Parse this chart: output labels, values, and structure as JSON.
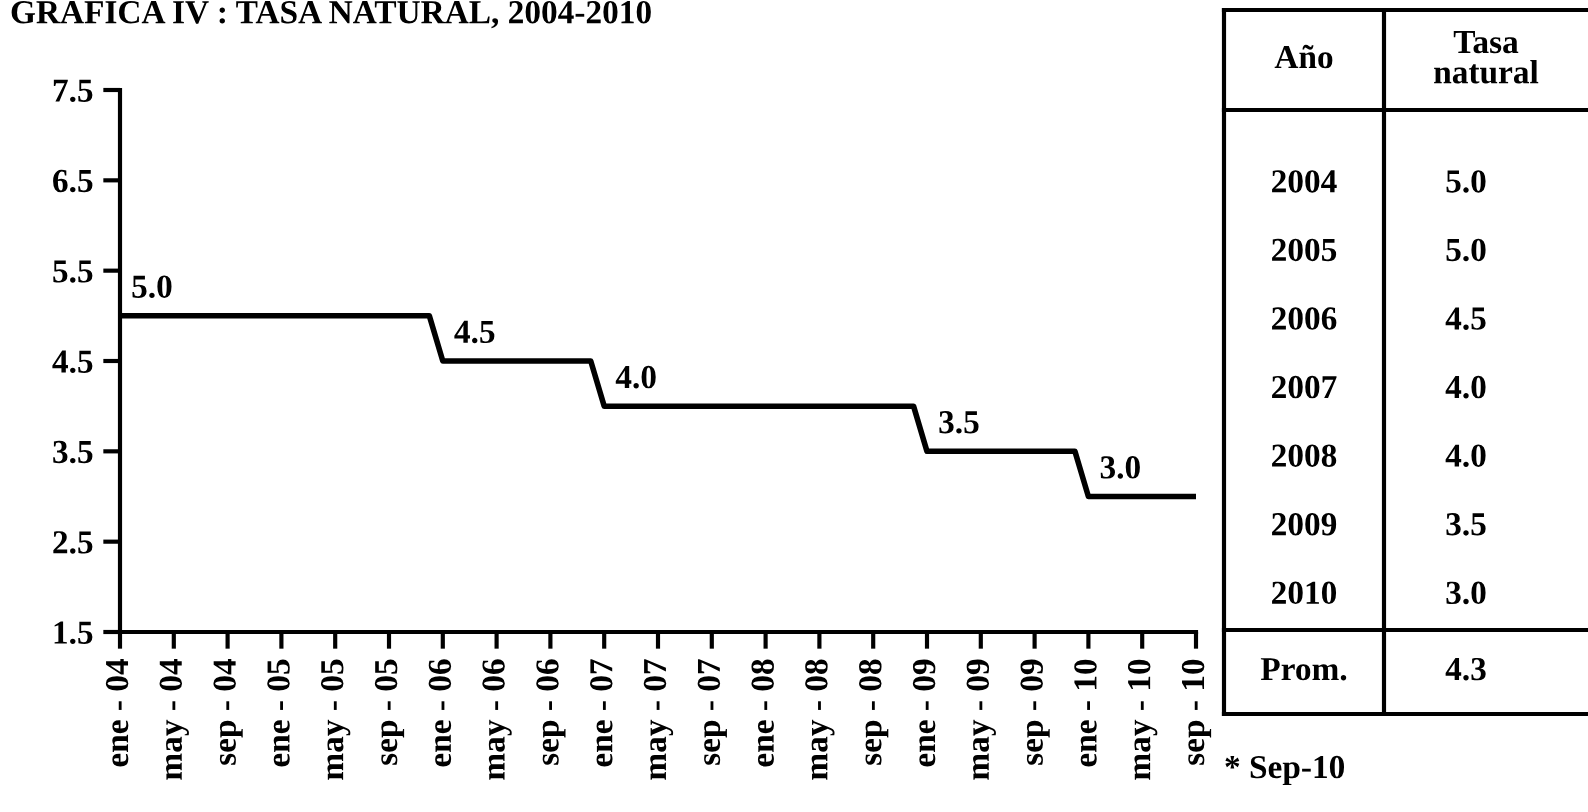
{
  "chart_data": {
    "type": "line",
    "title": "GRAFICA IV : TASA NATURAL, 2004-2010",
    "categories": [
      "ene - 04",
      null,
      null,
      null,
      "may - 04",
      null,
      null,
      null,
      "sep - 04",
      null,
      null,
      null,
      "ene - 05",
      null,
      null,
      null,
      "may - 05",
      null,
      null,
      null,
      "sep - 05",
      null,
      null,
      null,
      "ene - 06",
      null,
      null,
      null,
      "may - 06",
      null,
      null,
      null,
      "sep - 06",
      null,
      null,
      null,
      "ene - 07",
      null,
      null,
      null,
      "may - 07",
      null,
      null,
      null,
      "sep - 07",
      null,
      null,
      null,
      "ene - 08",
      null,
      null,
      null,
      "may - 08",
      null,
      null,
      null,
      "sep - 08",
      null,
      null,
      null,
      "ene - 09",
      null,
      null,
      null,
      "may - 09",
      null,
      null,
      null,
      "sep - 09",
      null,
      null,
      null,
      "ene - 10",
      null,
      null,
      null,
      "may - 10",
      null,
      null,
      null,
      "sep - 10"
    ],
    "series": [
      {
        "color": "#000000",
        "values": [
          5.0,
          5.0,
          5.0,
          5.0,
          5.0,
          5.0,
          5.0,
          5.0,
          5.0,
          5.0,
          5.0,
          5.0,
          5.0,
          5.0,
          5.0,
          5.0,
          5.0,
          5.0,
          5.0,
          5.0,
          5.0,
          5.0,
          5.0,
          5.0,
          4.5,
          4.5,
          4.5,
          4.5,
          4.5,
          4.5,
          4.5,
          4.5,
          4.5,
          4.5,
          4.5,
          4.5,
          4.0,
          4.0,
          4.0,
          4.0,
          4.0,
          4.0,
          4.0,
          4.0,
          4.0,
          4.0,
          4.0,
          4.0,
          4.0,
          4.0,
          4.0,
          4.0,
          4.0,
          4.0,
          4.0,
          4.0,
          4.0,
          4.0,
          4.0,
          4.0,
          3.5,
          3.5,
          3.5,
          3.5,
          3.5,
          3.5,
          3.5,
          3.5,
          3.5,
          3.5,
          3.5,
          3.5,
          3.0,
          3.0,
          3.0,
          3.0,
          3.0,
          3.0,
          3.0,
          3.0,
          3.0
        ],
        "value_labels": [
          "5.0",
          null,
          null,
          null,
          null,
          null,
          null,
          null,
          null,
          null,
          null,
          null,
          null,
          null,
          null,
          null,
          null,
          null,
          null,
          null,
          null,
          null,
          null,
          null,
          "4.5",
          null,
          null,
          null,
          null,
          null,
          null,
          null,
          null,
          null,
          null,
          null,
          "4.0",
          null,
          null,
          null,
          null,
          null,
          null,
          null,
          null,
          null,
          null,
          null,
          null,
          null,
          null,
          null,
          null,
          null,
          null,
          null,
          null,
          null,
          null,
          null,
          "3.5",
          null,
          null,
          null,
          null,
          null,
          null,
          null,
          null,
          null,
          null,
          null,
          "3.0",
          null,
          null,
          null,
          null,
          null,
          null,
          null,
          null
        ]
      }
    ],
    "ylim": [
      1.5,
      7.5
    ],
    "yticks": [
      "1.5",
      "2.5",
      "3.5",
      "4.5",
      "5.5",
      "6.5",
      "7.5"
    ],
    "marker": "none",
    "line_style": "solid",
    "grid": false,
    "legend": false,
    "annotations": [
      "Año",
      "Tasa natural",
      "2004",
      "5.0",
      "2005",
      "5.0",
      "2006",
      "4.5",
      "2007",
      "4.0",
      "2008",
      "4.0",
      "2009",
      "3.5",
      "2010",
      "3.0",
      "Prom.",
      "4.3",
      "* Sep-10"
    ]
  }
}
